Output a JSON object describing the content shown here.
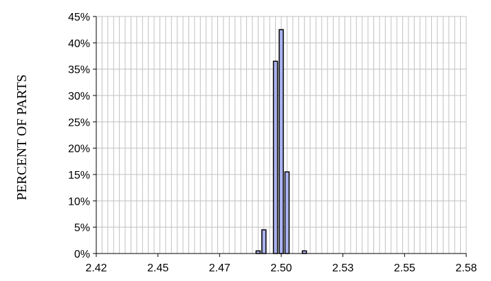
{
  "chart_data": {
    "type": "bar",
    "ylabel": "PERCENT OF PARTS",
    "xlabel": "",
    "title": "",
    "xlim": [
      2.42,
      2.58
    ],
    "ylim": [
      0,
      0.45
    ],
    "x_ticks": [
      "2.42",
      "2.45",
      "2.47",
      "2.50",
      "2.53",
      "2.55",
      "2.58"
    ],
    "y_ticks": [
      "0%",
      "5%",
      "10%",
      "15%",
      "20%",
      "25%",
      "30%",
      "35%",
      "40%",
      "45%"
    ],
    "bins": [
      2.49,
      2.4925,
      2.4975,
      2.5,
      2.5025,
      2.51
    ],
    "values": [
      0.005,
      0.045,
      0.365,
      0.425,
      0.155,
      0.005
    ],
    "grid": true,
    "colors": {
      "bar_fill": "#aab2ee",
      "bar_stroke": "#000000",
      "grid": "#c0c0c0",
      "axis": "#000000"
    }
  }
}
